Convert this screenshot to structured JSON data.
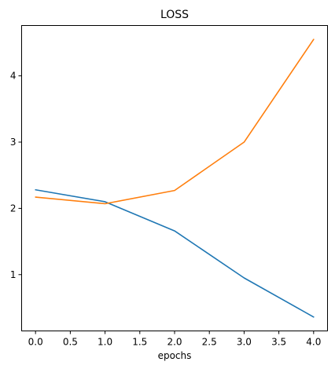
{
  "chart_data": {
    "type": "line",
    "title": "LOSS",
    "xlabel": "epochs",
    "ylabel": "",
    "x": [
      0,
      1,
      2,
      3,
      4
    ],
    "xlim": [
      -0.2,
      4.2
    ],
    "ylim": [
      0.15,
      4.76
    ],
    "xticks": [
      0.0,
      0.5,
      1.0,
      1.5,
      2.0,
      2.5,
      3.0,
      3.5,
      4.0
    ],
    "xtick_labels": [
      "0.0",
      "0.5",
      "1.0",
      "1.5",
      "2.0",
      "2.5",
      "3.0",
      "3.5",
      "4.0"
    ],
    "yticks": [
      1,
      2,
      3,
      4
    ],
    "ytick_labels": [
      "1",
      "2",
      "3",
      "4"
    ],
    "grid": false,
    "legend": "none",
    "series": [
      {
        "color": "#1f77b4",
        "values": [
          2.28,
          2.1,
          1.66,
          0.95,
          0.36
        ]
      },
      {
        "color": "#ff7f0e",
        "values": [
          2.17,
          2.07,
          2.27,
          3.0,
          4.55
        ]
      }
    ]
  }
}
